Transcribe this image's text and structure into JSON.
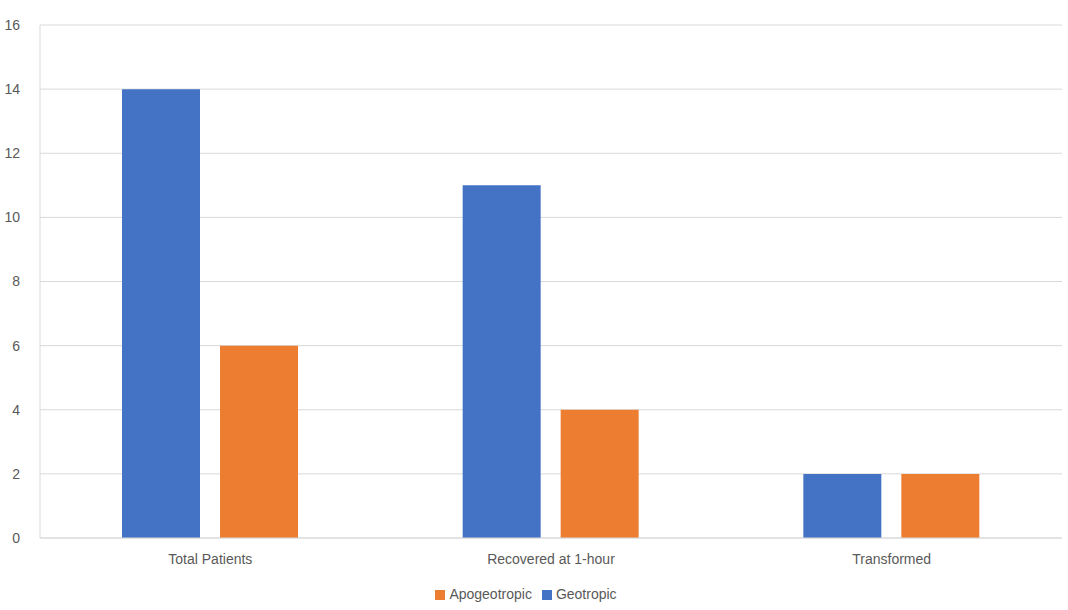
{
  "chart_data": {
    "type": "bar",
    "categories": [
      "Total Patients",
      "Recovered at 1-hour",
      "Transformed"
    ],
    "series": [
      {
        "name": "Geotropic",
        "color": "#4472c4",
        "values": [
          14,
          11,
          2
        ]
      },
      {
        "name": "Apogeotropic",
        "color": "#ed7d31",
        "values": [
          6,
          4,
          2
        ]
      }
    ],
    "ylim": [
      0,
      16
    ],
    "yticks": [
      0,
      2,
      4,
      6,
      8,
      10,
      12,
      14,
      16
    ],
    "grid": true,
    "legend": "bottom"
  }
}
